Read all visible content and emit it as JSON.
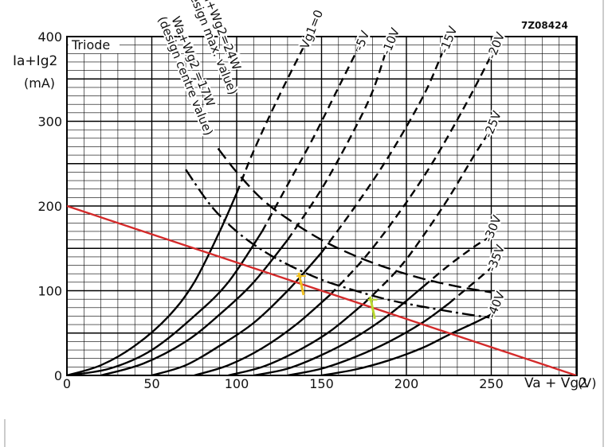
{
  "figure_code": "7Z08424",
  "box_label": "Triode",
  "chart_data": {
    "type": "line",
    "title": "",
    "xlabel": "Va + Vg2",
    "xunit": "(V)",
    "ylabel": "Ia+Ig2",
    "yunit": "(mA)",
    "xlim": [
      0,
      300
    ],
    "ylim": [
      0,
      400
    ],
    "x_ticks": [
      0,
      50,
      100,
      150,
      200,
      250
    ],
    "y_ticks": [
      0,
      100,
      200,
      300,
      400
    ],
    "grid": true,
    "series": [
      {
        "name": "Vg1=0",
        "label": "Vg1=0",
        "style": "solid-dashed",
        "points": [
          [
            0,
            0
          ],
          [
            20,
            12
          ],
          [
            40,
            35
          ],
          [
            60,
            70
          ],
          [
            75,
            110
          ],
          [
            90,
            170
          ],
          [
            100,
            215
          ],
          [
            110,
            265
          ],
          [
            125,
            330
          ],
          [
            140,
            390
          ]
        ]
      },
      {
        "name": "-5V",
        "label": "-5V",
        "style": "solid-dashed",
        "points": [
          [
            0,
            0
          ],
          [
            25,
            8
          ],
          [
            50,
            30
          ],
          [
            75,
            70
          ],
          [
            95,
            110
          ],
          [
            115,
            170
          ],
          [
            130,
            225
          ],
          [
            145,
            280
          ],
          [
            160,
            340
          ],
          [
            172,
            388
          ]
        ]
      },
      {
        "name": "-10V",
        "label": "-10V",
        "style": "solid-dashed",
        "points": [
          [
            20,
            0
          ],
          [
            45,
            14
          ],
          [
            70,
            40
          ],
          [
            90,
            72
          ],
          [
            110,
            110
          ],
          [
            130,
            160
          ],
          [
            150,
            220
          ],
          [
            168,
            285
          ],
          [
            180,
            335
          ],
          [
            188,
            383
          ]
        ]
      },
      {
        "name": "-15V",
        "label": "-15V",
        "style": "solid-dashed",
        "points": [
          [
            50,
            0
          ],
          [
            70,
            12
          ],
          [
            90,
            35
          ],
          [
            110,
            62
          ],
          [
            130,
            100
          ],
          [
            150,
            145
          ],
          [
            170,
            200
          ],
          [
            190,
            260
          ],
          [
            210,
            330
          ],
          [
            222,
            385
          ]
        ]
      },
      {
        "name": "-20V",
        "label": "-20V",
        "style": "solid-dashed",
        "points": [
          [
            75,
            0
          ],
          [
            95,
            12
          ],
          [
            115,
            32
          ],
          [
            135,
            60
          ],
          [
            155,
            95
          ],
          [
            175,
            138
          ],
          [
            195,
            190
          ],
          [
            215,
            250
          ],
          [
            235,
            320
          ],
          [
            250,
            378
          ]
        ]
      },
      {
        "name": "-25V",
        "label": "-25V",
        "style": "solid-dashed",
        "points": [
          [
            95,
            0
          ],
          [
            115,
            10
          ],
          [
            135,
            28
          ],
          [
            155,
            52
          ],
          [
            175,
            85
          ],
          [
            195,
            125
          ],
          [
            210,
            165
          ],
          [
            225,
            210
          ],
          [
            240,
            260
          ],
          [
            248,
            285
          ]
        ]
      },
      {
        "name": "-30V",
        "label": "-30V",
        "style": "solid-dashed",
        "points": [
          [
            110,
            0
          ],
          [
            130,
            8
          ],
          [
            150,
            24
          ],
          [
            170,
            45
          ],
          [
            190,
            72
          ],
          [
            210,
            105
          ],
          [
            225,
            130
          ],
          [
            240,
            152
          ],
          [
            248,
            162
          ]
        ]
      },
      {
        "name": "-35V",
        "label": "-35V",
        "style": "solid-dashed",
        "points": [
          [
            130,
            0
          ],
          [
            150,
            8
          ],
          [
            170,
            22
          ],
          [
            190,
            40
          ],
          [
            210,
            63
          ],
          [
            225,
            85
          ],
          [
            240,
            110
          ],
          [
            250,
            127
          ]
        ]
      },
      {
        "name": "-40V",
        "label": "-40V",
        "style": "solid-dashed",
        "points": [
          [
            150,
            0
          ],
          [
            170,
            7
          ],
          [
            190,
            18
          ],
          [
            210,
            33
          ],
          [
            225,
            48
          ],
          [
            240,
            62
          ],
          [
            250,
            72
          ]
        ]
      }
    ],
    "power_curves": [
      {
        "label_lines": [
          "Wa+Wg2=24W",
          "(design max. value)"
        ],
        "style": "dashed",
        "points": [
          [
            89,
            268
          ],
          [
            100,
            240
          ],
          [
            115,
            208
          ],
          [
            130,
            185
          ],
          [
            150,
            160
          ],
          [
            170,
            141
          ],
          [
            190,
            126
          ],
          [
            210,
            114
          ],
          [
            230,
            105
          ],
          [
            250,
            98
          ]
        ]
      },
      {
        "label_lines": [
          "Wa+Wg2 =17W",
          "(design centre value)"
        ],
        "style": "dash-dot",
        "points": [
          [
            70,
            243
          ],
          [
            85,
            200
          ],
          [
            100,
            170
          ],
          [
            115,
            148
          ],
          [
            130,
            131
          ],
          [
            150,
            113
          ],
          [
            170,
            100
          ],
          [
            190,
            89
          ],
          [
            210,
            81
          ],
          [
            230,
            74
          ],
          [
            250,
            68
          ]
        ]
      }
    ],
    "load_line": {
      "color": "#d42a2a",
      "points": [
        [
          0,
          200
        ],
        [
          300,
          0
        ]
      ]
    },
    "operating_points": [
      {
        "x": 138,
        "y": 108,
        "color": "#f0c020"
      },
      {
        "x": 180,
        "y": 80,
        "color": "#b8d830"
      }
    ]
  }
}
